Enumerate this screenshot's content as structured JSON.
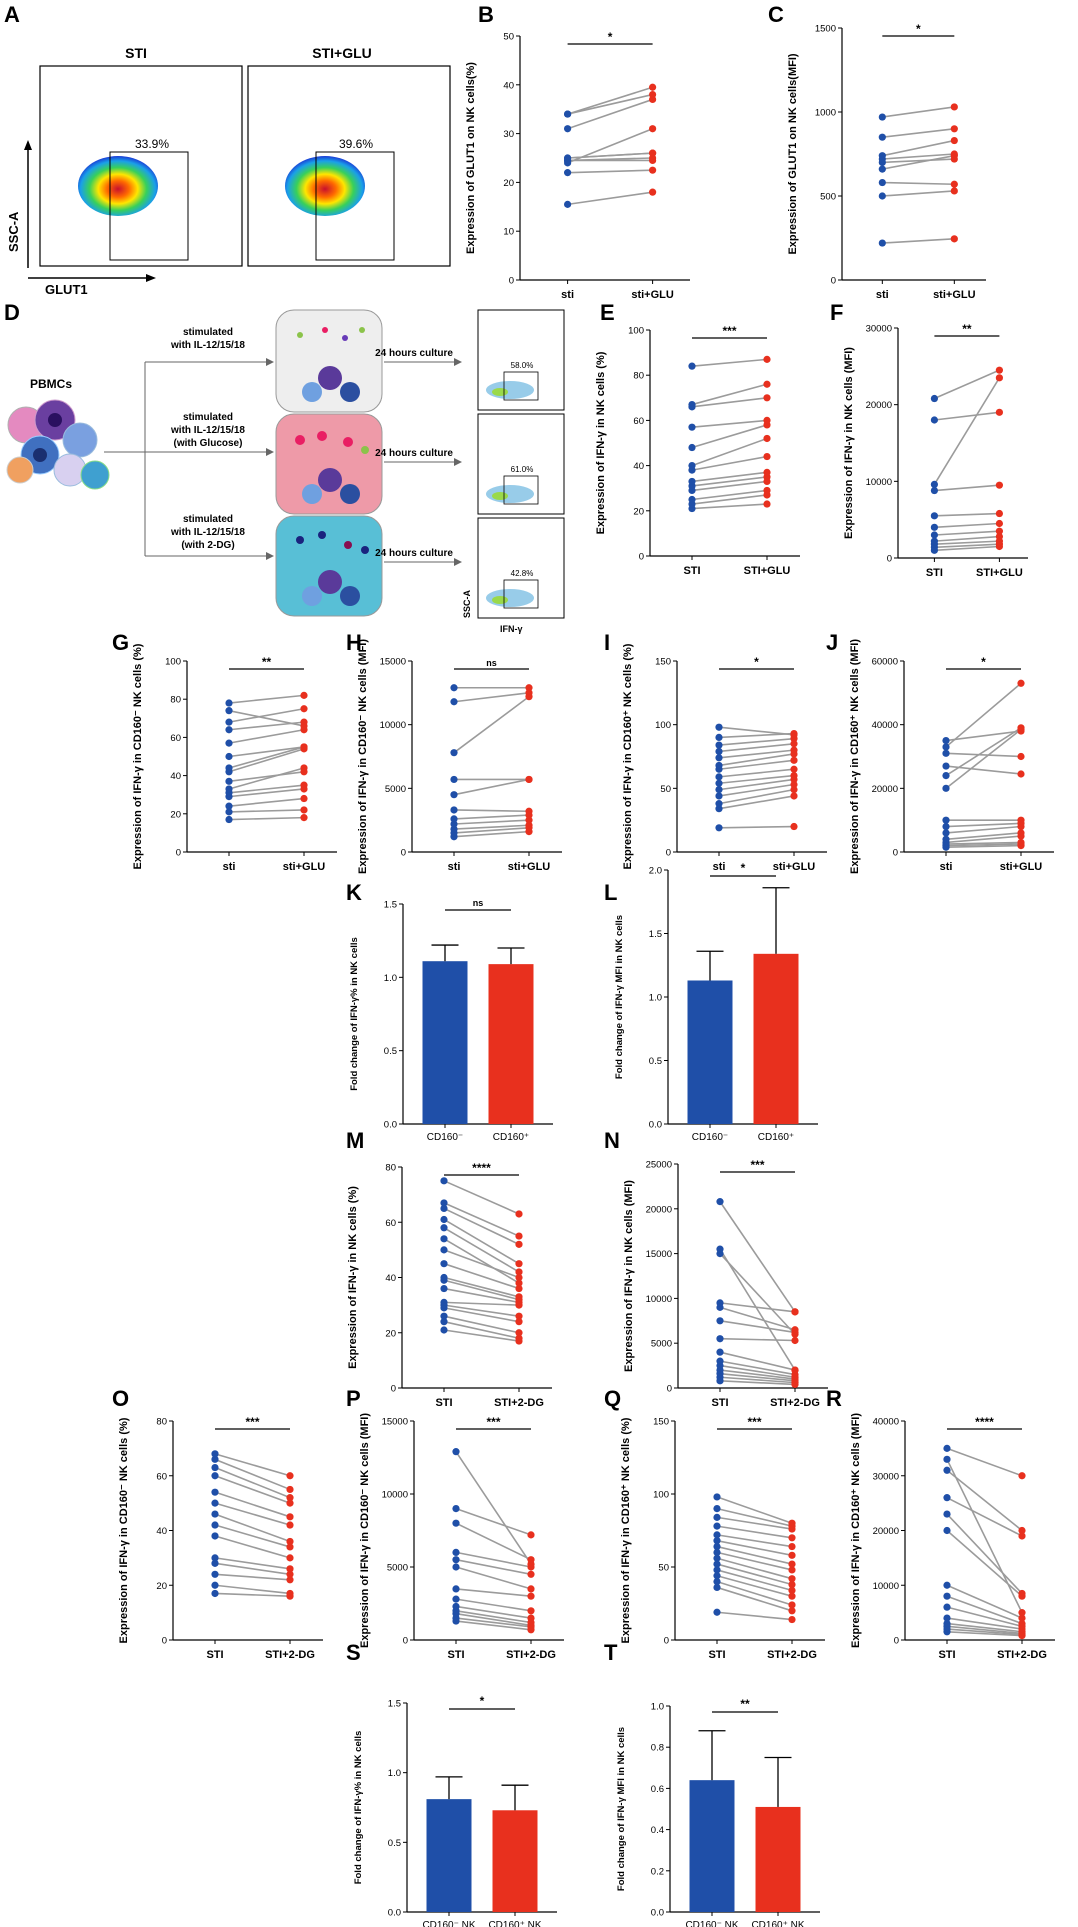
{
  "panel_letters": [
    "A",
    "B",
    "C",
    "D",
    "E",
    "F",
    "G",
    "H",
    "I",
    "J",
    "K",
    "L",
    "M",
    "N",
    "O",
    "P",
    "Q",
    "R",
    "S",
    "T"
  ],
  "flow": {
    "titles": [
      "STI",
      "STI+GLU"
    ],
    "gates": [
      "33.9%",
      "39.6%"
    ],
    "ylabel": "SSC-A",
    "xlabel": "GLUT1"
  },
  "diagram": {
    "pbmc_label": "PBMCs",
    "conditions": [
      {
        "line1": "stimulated",
        "line2": "with IL-12/15/18",
        "line3": "",
        "culture": "24 hours culture",
        "gate": "58.0%",
        "bg": "#eeeeee"
      },
      {
        "line1": "stimulated",
        "line2": "with IL-12/15/18",
        "line3": "(with Glucose)",
        "culture": "24 hours culture",
        "gate": "61.0%",
        "bg": "#ee9aa8"
      },
      {
        "line1": "stimulated",
        "line2": "with IL-12/15/18",
        "line3": "(with 2-DG)",
        "culture": "24 hours culture",
        "gate": "42.8%",
        "bg": "#58bfd6"
      }
    ],
    "flow_ylabel": "SSC-A",
    "flow_xlabel": "IFN-γ"
  },
  "colors": {
    "blue": "#1f4fa8",
    "red": "#e8301e",
    "gray": "#9b9b9b"
  },
  "chart_data": [
    {
      "id": "B",
      "type": "paired",
      "ylabel": "Expression of GLUT1 on NK cells(%)",
      "categories": [
        "sti",
        "sti+GLU"
      ],
      "ylim": [
        0,
        50
      ],
      "yticks": [
        0,
        10,
        20,
        30,
        40,
        50
      ],
      "sig": "*",
      "pairs": [
        [
          15.5,
          18
        ],
        [
          22,
          22.5
        ],
        [
          24.5,
          25
        ],
        [
          25,
          26
        ],
        [
          25,
          26
        ],
        [
          24.5,
          24.5
        ],
        [
          31,
          37
        ],
        [
          34,
          38
        ],
        [
          34,
          39.5
        ],
        [
          24,
          31
        ]
      ]
    },
    {
      "id": "C",
      "type": "paired",
      "ylabel": "Expression of GLUT1 on NK cells(MFI)",
      "categories": [
        "sti",
        "sti+GLU"
      ],
      "ylim": [
        0,
        1500
      ],
      "yticks": [
        0,
        500,
        1000,
        1500
      ],
      "sig": "*",
      "pairs": [
        [
          220,
          245
        ],
        [
          500,
          530
        ],
        [
          580,
          570
        ],
        [
          660,
          740
        ],
        [
          700,
          720
        ],
        [
          720,
          750
        ],
        [
          740,
          830
        ],
        [
          850,
          900
        ],
        [
          970,
          1030
        ]
      ]
    },
    {
      "id": "E",
      "type": "paired",
      "ylabel": "Expression of IFN-γ in NK cells (%)",
      "categories": [
        "STI",
        "STI+GLU"
      ],
      "ylim": [
        0,
        100
      ],
      "yticks": [
        0,
        20,
        40,
        60,
        80,
        100
      ],
      "sig": "***",
      "pairs": [
        [
          21,
          23
        ],
        [
          23,
          27
        ],
        [
          25,
          29
        ],
        [
          29,
          33
        ],
        [
          31,
          35
        ],
        [
          33,
          37
        ],
        [
          38,
          44
        ],
        [
          40,
          52
        ],
        [
          48,
          58
        ],
        [
          57,
          60
        ],
        [
          66,
          70
        ],
        [
          67,
          76
        ],
        [
          84,
          87
        ]
      ]
    },
    {
      "id": "F",
      "type": "paired",
      "ylabel": "Expression of IFN-γ in NK cells (MFI)",
      "categories": [
        "STI",
        "STI+GLU"
      ],
      "ylim": [
        0,
        30000
      ],
      "yticks": [
        0,
        10000,
        20000,
        30000
      ],
      "sig": "**",
      "pairs": [
        [
          1000,
          1500
        ],
        [
          1400,
          1800
        ],
        [
          1800,
          2200
        ],
        [
          2200,
          2800
        ],
        [
          3000,
          3500
        ],
        [
          4000,
          4500
        ],
        [
          5500,
          5800
        ],
        [
          8800,
          9500
        ],
        [
          9600,
          23500
        ],
        [
          18000,
          19000
        ],
        [
          20800,
          24500
        ]
      ]
    },
    {
      "id": "G",
      "type": "paired",
      "ylabel": "Expression of IFN-γ in CD160⁻ NK cells (%)",
      "categories": [
        "sti",
        "sti+GLU"
      ],
      "ylim": [
        0,
        100
      ],
      "yticks": [
        0,
        20,
        40,
        60,
        80,
        100
      ],
      "sig": "**",
      "pairs": [
        [
          17,
          18
        ],
        [
          21,
          22
        ],
        [
          24,
          28
        ],
        [
          29,
          33
        ],
        [
          31,
          35
        ],
        [
          33,
          44
        ],
        [
          37,
          42
        ],
        [
          42,
          54
        ],
        [
          44,
          55
        ],
        [
          50,
          55
        ],
        [
          57,
          64
        ],
        [
          64,
          68
        ],
        [
          68,
          75
        ],
        [
          74,
          66
        ],
        [
          78,
          82
        ]
      ]
    },
    {
      "id": "H",
      "type": "paired",
      "ylabel": "Expression of IFN-γ in CD160⁻ NK cells (MFI)",
      "categories": [
        "sti",
        "sti+GLU"
      ],
      "ylim": [
        0,
        15000
      ],
      "yticks": [
        0,
        5000,
        10000,
        15000
      ],
      "sig": "ns",
      "pairs": [
        [
          1200,
          1600
        ],
        [
          1500,
          1900
        ],
        [
          1800,
          2100
        ],
        [
          2200,
          2500
        ],
        [
          2600,
          2900
        ],
        [
          3300,
          3200
        ],
        [
          4500,
          5700
        ],
        [
          5700,
          5700
        ],
        [
          7800,
          12200
        ],
        [
          11800,
          12500
        ],
        [
          12900,
          12900
        ]
      ]
    },
    {
      "id": "I",
      "type": "paired",
      "ylabel": "Expression of IFN-γ in CD160⁺ NK cells (%)",
      "categories": [
        "sti",
        "sti+GLU"
      ],
      "ylim": [
        0,
        150
      ],
      "yticks": [
        0,
        50,
        100,
        150
      ],
      "sig": "*",
      "pairs": [
        [
          19,
          20
        ],
        [
          34,
          44
        ],
        [
          38,
          49
        ],
        [
          44,
          53
        ],
        [
          49,
          57
        ],
        [
          54,
          60
        ],
        [
          59,
          65
        ],
        [
          65,
          72
        ],
        [
          68,
          77
        ],
        [
          74,
          80
        ],
        [
          79,
          85
        ],
        [
          84,
          89
        ],
        [
          90,
          93
        ],
        [
          98,
          92
        ]
      ]
    },
    {
      "id": "J",
      "type": "paired",
      "ylabel": "Expression of IFN-γ in CD160⁺ NK cells (MFI)",
      "categories": [
        "sti",
        "sti+GLU"
      ],
      "ylim": [
        0,
        60000
      ],
      "yticks": [
        0,
        20000,
        40000,
        60000
      ],
      "sig": "*",
      "pairs": [
        [
          1500,
          2000
        ],
        [
          2000,
          2500
        ],
        [
          2500,
          3000
        ],
        [
          3000,
          5000
        ],
        [
          4000,
          6000
        ],
        [
          6000,
          8000
        ],
        [
          8000,
          9000
        ],
        [
          10000,
          10000
        ],
        [
          20000,
          38500
        ],
        [
          24000,
          39000
        ],
        [
          27000,
          24500
        ],
        [
          31000,
          30000
        ],
        [
          33000,
          53000
        ],
        [
          35000,
          38000
        ]
      ]
    },
    {
      "id": "K",
      "type": "bar",
      "ylabel": "Fold change of IFN-γ% in NK cells",
      "categories": [
        "CD160⁻",
        "CD160⁺"
      ],
      "values": [
        1.11,
        1.09
      ],
      "errors": [
        0.11,
        0.11
      ],
      "ylim": [
        0,
        1.5
      ],
      "yticks": [
        "0.0",
        "0.5",
        "1.0",
        "1.5"
      ],
      "sig": "ns"
    },
    {
      "id": "L",
      "type": "bar",
      "ylabel": "Fold change of IFN-γ MFI in NK cells",
      "categories": [
        "CD160⁻",
        "CD160⁺"
      ],
      "values": [
        1.13,
        1.34
      ],
      "errors": [
        0.23,
        0.52
      ],
      "ylim": [
        0,
        2.0
      ],
      "yticks": [
        "0.0",
        "0.5",
        "1.0",
        "1.5",
        "2.0"
      ],
      "sig": "*"
    },
    {
      "id": "M",
      "type": "paired",
      "ylabel": "Expression of IFN-γ in NK cells (%)",
      "categories": [
        "STI",
        "STI+2-DG"
      ],
      "ylim": [
        0,
        80
      ],
      "yticks": [
        0,
        20,
        40,
        60,
        80
      ],
      "sig": "****",
      "pairs": [
        [
          21,
          17
        ],
        [
          24,
          18
        ],
        [
          26,
          20
        ],
        [
          29,
          24
        ],
        [
          30,
          26
        ],
        [
          31,
          30
        ],
        [
          36,
          31
        ],
        [
          39,
          32
        ],
        [
          40,
          33
        ],
        [
          45,
          36
        ],
        [
          50,
          40
        ],
        [
          54,
          38
        ],
        [
          58,
          42
        ],
        [
          61,
          45
        ],
        [
          65,
          52
        ],
        [
          67,
          55
        ],
        [
          75,
          63
        ]
      ]
    },
    {
      "id": "N",
      "type": "paired",
      "ylabel": "Expression of IFN-γ in NK cells (MFI)",
      "categories": [
        "STI",
        "STI+2-DG"
      ],
      "ylim": [
        0,
        25000
      ],
      "yticks": [
        0,
        5000,
        10000,
        15000,
        20000,
        25000
      ],
      "sig": "***",
      "pairs": [
        [
          800,
          400
        ],
        [
          1200,
          600
        ],
        [
          1600,
          800
        ],
        [
          2000,
          1000
        ],
        [
          2500,
          1200
        ],
        [
          3000,
          1500
        ],
        [
          4000,
          2000
        ],
        [
          5500,
          5300
        ],
        [
          7500,
          6200
        ],
        [
          9000,
          6500
        ],
        [
          9500,
          8500
        ],
        [
          15000,
          6000
        ],
        [
          15500,
          2000
        ],
        [
          20800,
          8500
        ]
      ]
    },
    {
      "id": "O",
      "type": "paired",
      "ylabel": "Expression of IFN-γ in CD160⁻ NK cells (%)",
      "categories": [
        "STI",
        "STI+2-DG"
      ],
      "ylim": [
        0,
        80
      ],
      "yticks": [
        0,
        20,
        40,
        60,
        80
      ],
      "sig": "***",
      "pairs": [
        [
          17,
          16
        ],
        [
          20,
          17
        ],
        [
          24,
          22
        ],
        [
          28,
          24
        ],
        [
          30,
          26
        ],
        [
          38,
          30
        ],
        [
          42,
          34
        ],
        [
          46,
          36
        ],
        [
          50,
          42
        ],
        [
          54,
          45
        ],
        [
          60,
          50
        ],
        [
          63,
          52
        ],
        [
          66,
          55
        ],
        [
          68,
          60
        ]
      ]
    },
    {
      "id": "P",
      "type": "paired",
      "ylabel": "Expression of IFN-γ in CD160⁻ NK cells (MFI)",
      "categories": [
        "STI",
        "STI+2-DG"
      ],
      "ylim": [
        0,
        15000
      ],
      "yticks": [
        0,
        5000,
        10000,
        15000
      ],
      "sig": "***",
      "pairs": [
        [
          1300,
          700
        ],
        [
          1500,
          900
        ],
        [
          1800,
          1000
        ],
        [
          2000,
          1200
        ],
        [
          2300,
          1500
        ],
        [
          2800,
          2000
        ],
        [
          3500,
          3000
        ],
        [
          5000,
          3500
        ],
        [
          5500,
          4500
        ],
        [
          6000,
          5000
        ],
        [
          8000,
          5500
        ],
        [
          9000,
          7200
        ],
        [
          12900,
          5200
        ]
      ]
    },
    {
      "id": "Q",
      "type": "paired",
      "ylabel": "Expression of IFN-γ in CD160⁺ NK cells (%)",
      "categories": [
        "STI",
        "STI+2-DG"
      ],
      "ylim": [
        0,
        150
      ],
      "yticks": [
        0,
        50,
        100,
        150
      ],
      "sig": "***",
      "pairs": [
        [
          19,
          14
        ],
        [
          36,
          20
        ],
        [
          40,
          24
        ],
        [
          44,
          30
        ],
        [
          48,
          34
        ],
        [
          52,
          38
        ],
        [
          56,
          42
        ],
        [
          60,
          48
        ],
        [
          64,
          52
        ],
        [
          68,
          58
        ],
        [
          72,
          64
        ],
        [
          78,
          70
        ],
        [
          84,
          76
        ],
        [
          90,
          78
        ],
        [
          98,
          80
        ]
      ]
    },
    {
      "id": "R",
      "type": "paired",
      "ylabel": "Expression of IFN-γ in CD160⁺ NK cells (MFI)",
      "categories": [
        "STI",
        "STI+2-DG"
      ],
      "ylim": [
        0,
        40000
      ],
      "yticks": [
        0,
        10000,
        20000,
        30000,
        40000
      ],
      "sig": "****",
      "pairs": [
        [
          1500,
          800
        ],
        [
          2000,
          1000
        ],
        [
          2500,
          1200
        ],
        [
          3000,
          1500
        ],
        [
          4000,
          2000
        ],
        [
          6000,
          2500
        ],
        [
          8000,
          3000
        ],
        [
          10000,
          4000
        ],
        [
          20000,
          8000
        ],
        [
          23000,
          8500
        ],
        [
          26000,
          19000
        ],
        [
          31000,
          20000
        ],
        [
          33000,
          5000
        ],
        [
          35000,
          30000
        ]
      ]
    },
    {
      "id": "S",
      "type": "bar",
      "ylabel": "Fold change of IFN-γ% in NK cells",
      "categories": [
        "CD160⁻ NK",
        "CD160⁺ NK"
      ],
      "values": [
        0.81,
        0.73
      ],
      "errors": [
        0.16,
        0.18
      ],
      "ylim": [
        0,
        1.5
      ],
      "yticks": [
        "0.0",
        "0.5",
        "1.0",
        "1.5"
      ],
      "sig": "*"
    },
    {
      "id": "T",
      "type": "bar",
      "ylabel": "Fold change of IFN-γ MFI in NK cells",
      "categories": [
        "CD160⁻ NK",
        "CD160⁺ NK"
      ],
      "values": [
        0.64,
        0.51
      ],
      "errors": [
        0.24,
        0.24
      ],
      "ylim": [
        0,
        1.0
      ],
      "yticks": [
        "0.0",
        "0.2",
        "0.4",
        "0.6",
        "0.8",
        "1.0"
      ],
      "sig": "**"
    }
  ]
}
